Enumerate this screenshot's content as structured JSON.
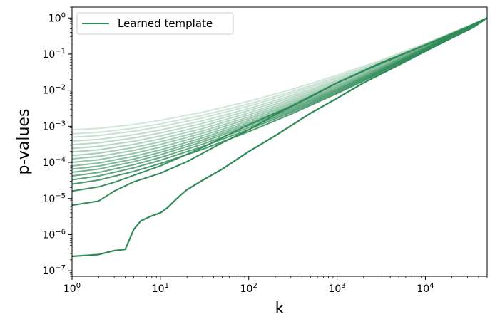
{
  "chart_data": {
    "type": "line",
    "xlabel": "k",
    "ylabel": "p-values",
    "xscale": "log",
    "yscale": "log",
    "xlim": [
      1,
      50000
    ],
    "ylim": [
      7e-08,
      2.0
    ],
    "grid": false,
    "legend": {
      "position": "top-left",
      "entries": [
        "Learned template"
      ]
    },
    "x_ticks": [
      {
        "base": "10",
        "exp": "0",
        "value": 1
      },
      {
        "base": "10",
        "exp": "1",
        "value": 10
      },
      {
        "base": "10",
        "exp": "2",
        "value": 100
      },
      {
        "base": "10",
        "exp": "3",
        "value": 1000
      },
      {
        "base": "10",
        "exp": "4",
        "value": 10000
      }
    ],
    "y_ticks": [
      {
        "base": "10",
        "exp": "0",
        "value": 1
      },
      {
        "base": "10",
        "exp": "−1",
        "value": 0.1
      },
      {
        "base": "10",
        "exp": "−2",
        "value": 0.01
      },
      {
        "base": "10",
        "exp": "−3",
        "value": 0.001
      },
      {
        "base": "10",
        "exp": "−4",
        "value": 0.0001
      },
      {
        "base": "10",
        "exp": "−5",
        "value": 1e-05
      },
      {
        "base": "10",
        "exp": "−6",
        "value": 1e-06
      },
      {
        "base": "10",
        "exp": "−7",
        "value": 1e-07
      }
    ],
    "series": [
      {
        "name": "Learned template",
        "color": "#2e8b57",
        "opacity": 1.0,
        "x": [
          1,
          2,
          3,
          4,
          5,
          6,
          8,
          10,
          12,
          14,
          17,
          20,
          30,
          50,
          100,
          200,
          500,
          1000,
          2000,
          5000,
          10000,
          20000,
          35000,
          50000
        ],
        "y": [
          2.5e-07,
          2.8e-07,
          3.6e-07,
          3.9e-07,
          1.4e-06,
          2.4e-06,
          3.3e-06,
          4e-06,
          5.5e-06,
          8e-06,
          1.25e-05,
          1.75e-05,
          3.2e-05,
          6.5e-05,
          0.0002,
          0.00055,
          0.0023,
          0.006,
          0.016,
          0.05,
          0.12,
          0.28,
          0.55,
          1.0
        ]
      },
      {
        "color": "#2e8b57",
        "opacity": 1.0,
        "x": [
          1,
          2,
          3,
          5,
          10,
          20,
          50,
          100,
          200,
          500,
          1000,
          3000,
          10000,
          30000,
          50000
        ],
        "y": [
          6.5e-06,
          8.5e-06,
          1.6e-05,
          2.9e-05,
          5e-05,
          0.000105,
          0.00035,
          0.0008,
          0.0021,
          0.0065,
          0.016,
          0.055,
          0.18,
          0.5,
          1.0
        ]
      },
      {
        "color": "#2e8b57",
        "opacity": 0.95,
        "x": [
          1,
          2,
          3,
          5,
          10,
          30,
          100,
          300,
          1000,
          3000,
          10000,
          30000,
          50000
        ],
        "y": [
          1.6e-05,
          2.1e-05,
          2.8e-05,
          4.4e-05,
          8e-05,
          0.00026,
          0.0011,
          0.0036,
          0.016,
          0.052,
          0.18,
          0.56,
          1.0
        ]
      },
      {
        "color": "#2e8b57",
        "opacity": 0.85,
        "level": 0.0,
        "start": 2.5e-05
      },
      {
        "color": "#2e8b57",
        "opacity": 0.78,
        "level": 0.07,
        "start": 3.3e-05
      },
      {
        "color": "#2e8b57",
        "opacity": 0.72,
        "level": 0.14,
        "start": 4.2e-05
      },
      {
        "color": "#2e8b57",
        "opacity": 0.66,
        "level": 0.21,
        "start": 5.3e-05
      },
      {
        "color": "#2e8b57",
        "opacity": 0.61,
        "level": 0.28,
        "start": 6.5e-05
      },
      {
        "color": "#2e8b57",
        "opacity": 0.56,
        "level": 0.35,
        "start": 8e-05
      },
      {
        "color": "#2e8b57",
        "opacity": 0.51,
        "level": 0.42,
        "start": 0.0001
      },
      {
        "color": "#2e8b57",
        "opacity": 0.47,
        "level": 0.49,
        "start": 0.000125
      },
      {
        "color": "#2e8b57",
        "opacity": 0.43,
        "level": 0.56,
        "start": 0.000155
      },
      {
        "color": "#2e8b57",
        "opacity": 0.39,
        "level": 0.63,
        "start": 0.000195
      },
      {
        "color": "#2e8b57",
        "opacity": 0.35,
        "level": 0.7,
        "start": 0.000245
      },
      {
        "color": "#2e8b57",
        "opacity": 0.32,
        "level": 0.77,
        "start": 0.00031
      },
      {
        "color": "#2e8b57",
        "opacity": 0.29,
        "level": 0.84,
        "start": 0.00039
      },
      {
        "color": "#2e8b57",
        "opacity": 0.26,
        "level": 0.9,
        "start": 0.0005
      },
      {
        "color": "#2e8b57",
        "opacity": 0.23,
        "level": 0.95,
        "start": 0.00062
      },
      {
        "color": "#2e8b57",
        "opacity": 0.21,
        "level": 1.0,
        "start": 0.0008
      }
    ]
  }
}
